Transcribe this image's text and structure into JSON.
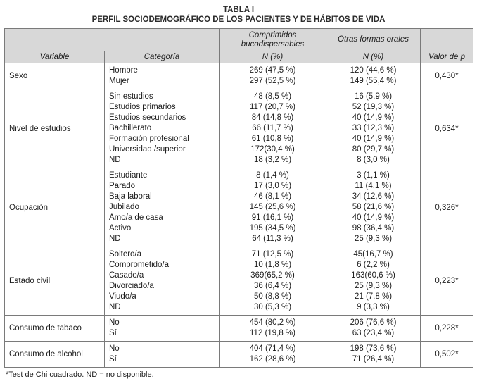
{
  "title": "TABLA I",
  "subtitle": "PERFIL SOCIODEMOGRÁFICO DE LOS PACIENTES Y DE HÁBITOS DE VIDA",
  "header": {
    "col_group_1": "Comprimidos bucodispersables",
    "col_group_2": "Otras formas orales",
    "variable_label": "Variable",
    "category_label": "Categoría",
    "n_label_1": "N (%)",
    "n_label_2": "N (%)",
    "p_label": "Valor de p"
  },
  "groups": [
    {
      "variable": "Sexo",
      "p_value": "0,430*",
      "rows": [
        {
          "category": "Hombre",
          "comprimidos": "269 (47,5 %)",
          "otras": "120 (44,6 %)"
        },
        {
          "category": "Mujer",
          "comprimidos": "297 (52,5 %)",
          "otras": "149 (55,4 %)"
        }
      ]
    },
    {
      "variable": "Nivel de estudios",
      "p_value": "0,634*",
      "rows": [
        {
          "category": "Sin estudios",
          "comprimidos": "48 (8,5 %)",
          "otras": "16 (5,9 %)"
        },
        {
          "category": "Estudios primarios",
          "comprimidos": "117 (20,7 %)",
          "otras": "52 (19,3 %)"
        },
        {
          "category": "Estudios secundarios",
          "comprimidos": "84 (14,8 %)",
          "otras": "40 (14,9 %)"
        },
        {
          "category": "Bachillerato",
          "comprimidos": "66 (11,7 %)",
          "otras": "33 (12,3 %)"
        },
        {
          "category": "Formación profesional",
          "comprimidos": "61 (10,8 %)",
          "otras": "40 (14,9 %)"
        },
        {
          "category": "Universidad /superior",
          "comprimidos": "172(30,4 %)",
          "otras": "80 (29,7 %)"
        },
        {
          "category": "ND",
          "comprimidos": "18 (3,2 %)",
          "otras": "8 (3,0 %)"
        }
      ]
    },
    {
      "variable": "Ocupación",
      "p_value": "0,326*",
      "rows": [
        {
          "category": "Estudiante",
          "comprimidos": "8 (1,4 %)",
          "otras": "3 (1,1 %)"
        },
        {
          "category": "Parado",
          "comprimidos": "17 (3,0 %)",
          "otras": "11 (4,1 %)"
        },
        {
          "category": "Baja laboral",
          "comprimidos": "46 (8,1 %)",
          "otras": "34 (12,6 %)"
        },
        {
          "category": "Jubilado",
          "comprimidos": "145 (25,6 %)",
          "otras": "58 (21,6 %)"
        },
        {
          "category": "Amo/a de casa",
          "comprimidos": "91 (16,1 %)",
          "otras": "40 (14,9 %)"
        },
        {
          "category": "Activo",
          "comprimidos": "195 (34,5 %)",
          "otras": "98 (36,4 %)"
        },
        {
          "category": "ND",
          "comprimidos": "64 (11,3 %)",
          "otras": "25 (9,3 %)"
        }
      ]
    },
    {
      "variable": "Estado civil",
      "p_value": "0,223*",
      "rows": [
        {
          "category": "Soltero/a",
          "comprimidos": "71 (12,5 %)",
          "otras": "45(16,7 %)"
        },
        {
          "category": "Comprometido/a",
          "comprimidos": "10 (1,8 %)",
          "otras": "6 (2,2 %)"
        },
        {
          "category": "Casado/a",
          "comprimidos": "369(65,2 %)",
          "otras": "163(60,6 %)"
        },
        {
          "category": "Divorciado/a",
          "comprimidos": "36 (6,4 %)",
          "otras": "25 (9,3 %)"
        },
        {
          "category": "Viudo/a",
          "comprimidos": "50 (8,8 %)",
          "otras": "21 (7,8 %)"
        },
        {
          "category": "ND",
          "comprimidos": "30 (5,3 %)",
          "otras": "9 (3,3 %)"
        }
      ]
    },
    {
      "variable": "Consumo de tabaco",
      "p_value": "0,228*",
      "rows": [
        {
          "category": "No",
          "comprimidos": "454 (80,2 %)",
          "otras": "206 (76,6 %)"
        },
        {
          "category": "Sí",
          "comprimidos": "112 (19,8 %)",
          "otras": "63 (23,4 %)"
        }
      ]
    },
    {
      "variable": "Consumo de alcohol",
      "p_value": "0,502*",
      "rows": [
        {
          "category": "No",
          "comprimidos": "404 (71,4 %)",
          "otras": "198 (73,6 %)"
        },
        {
          "category": "Sí",
          "comprimidos": "162 (28,6 %)",
          "otras": "71 (26,4 %)"
        }
      ]
    }
  ],
  "footnote": "*Test de Chi cuadrado. ND = no disponible.",
  "colors": {
    "header_bg": "#d8d8d8",
    "border": "#7a7a7a",
    "text": "#1c1c1c"
  }
}
